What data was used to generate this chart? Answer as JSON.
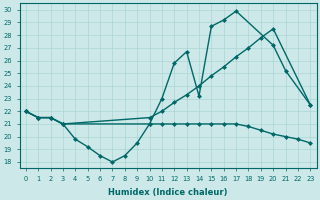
{
  "xlabel": "Humidex (Indice chaleur)",
  "xlim": [
    -0.5,
    23.5
  ],
  "ylim": [
    17.5,
    30.5
  ],
  "yticks": [
    18,
    19,
    20,
    21,
    22,
    23,
    24,
    25,
    26,
    27,
    28,
    29,
    30
  ],
  "xticks": [
    0,
    1,
    2,
    3,
    4,
    5,
    6,
    7,
    8,
    9,
    10,
    11,
    12,
    13,
    14,
    15,
    16,
    17,
    18,
    19,
    20,
    21,
    22,
    23
  ],
  "background_color": "#cce8e8",
  "line_color": "#006868",
  "grid_color": "#aad4d4",
  "line1_x": [
    0,
    1,
    2,
    3,
    4,
    5,
    6,
    7,
    8,
    9,
    10,
    11,
    12,
    13,
    14,
    15,
    16,
    17,
    20,
    21,
    23
  ],
  "line1_y": [
    22.0,
    21.5,
    21.5,
    21.0,
    19.8,
    19.2,
    18.5,
    18.0,
    18.5,
    19.5,
    21.0,
    23.0,
    25.8,
    26.7,
    23.2,
    28.7,
    29.2,
    29.9,
    27.2,
    25.2,
    22.5
  ],
  "line2_x": [
    0,
    1,
    2,
    3,
    10,
    11,
    12,
    13,
    14,
    15,
    16,
    17,
    18,
    19,
    20,
    23
  ],
  "line2_y": [
    22.0,
    21.5,
    21.5,
    21.0,
    21.5,
    22.0,
    22.7,
    23.3,
    24.0,
    24.8,
    25.5,
    26.3,
    27.0,
    27.8,
    28.5,
    22.5
  ],
  "line3_x": [
    0,
    1,
    2,
    3,
    10,
    11,
    12,
    13,
    14,
    15,
    16,
    17,
    18,
    19,
    20,
    21,
    22,
    23
  ],
  "line3_y": [
    22.0,
    21.5,
    21.5,
    21.0,
    21.0,
    21.0,
    21.0,
    21.0,
    21.0,
    21.0,
    21.0,
    21.0,
    20.8,
    20.5,
    20.2,
    20.0,
    19.8,
    19.5
  ],
  "marker": "D",
  "markersize": 2.5,
  "linewidth": 1.0
}
